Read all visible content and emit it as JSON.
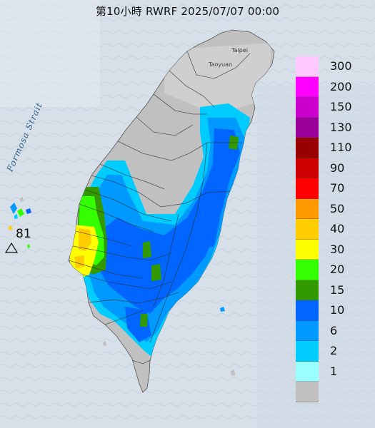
{
  "title": "第10小時  RWRF 2025/07/07 00:00",
  "map_labels": {
    "strait": "Formosa Strait",
    "taipei": "Taipei",
    "taoyuan": "Taoyuan"
  },
  "max_marker": {
    "value": "81",
    "symbol": "△"
  },
  "legend": [
    {
      "label": "300",
      "color": "#ffc8ff"
    },
    {
      "label": "200",
      "color": "#ff00ff"
    },
    {
      "label": "150",
      "color": "#cc00cc"
    },
    {
      "label": "130",
      "color": "#990099"
    },
    {
      "label": "110",
      "color": "#990000"
    },
    {
      "label": "90",
      "color": "#cc0000"
    },
    {
      "label": "70",
      "color": "#ff0000"
    },
    {
      "label": "50",
      "color": "#ff9900"
    },
    {
      "label": "40",
      "color": "#ffcc00"
    },
    {
      "label": "30",
      "color": "#ffff00"
    },
    {
      "label": "20",
      "color": "#33ff00"
    },
    {
      "label": "15",
      "color": "#339900"
    },
    {
      "label": "10",
      "color": "#0066ff"
    },
    {
      "label": "6",
      "color": "#0099ff"
    },
    {
      "label": "2",
      "color": "#00ccff"
    },
    {
      "label": "1",
      "color": "#99ffff"
    },
    {
      "label": "",
      "color": "#c0c0c0"
    }
  ]
}
